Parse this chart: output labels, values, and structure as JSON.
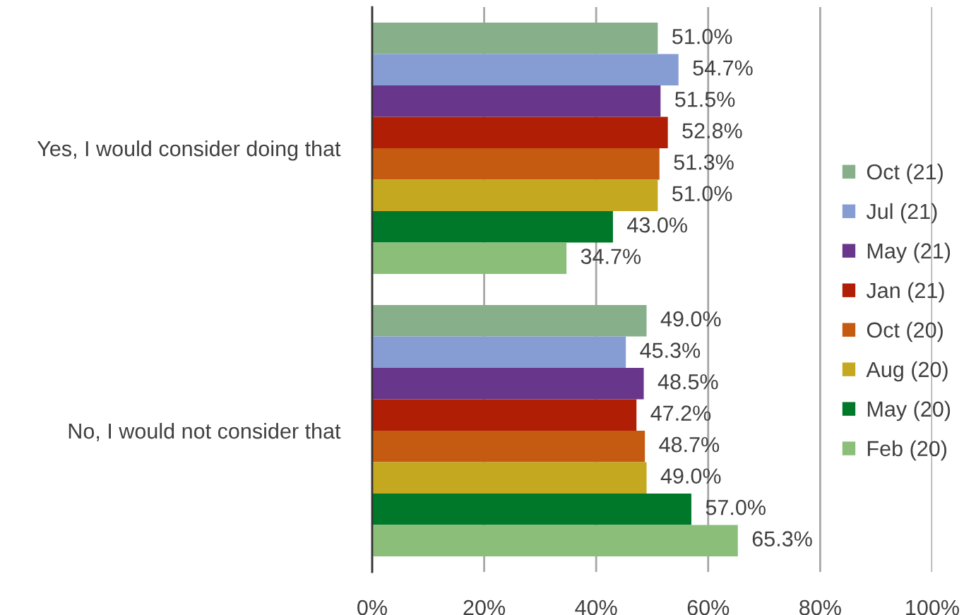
{
  "chart_data": {
    "type": "bar",
    "orientation": "horizontal",
    "categories": [
      "Yes, I would consider doing that",
      "No, I would not consider that"
    ],
    "series": [
      {
        "name": "Oct (21)",
        "color": "#86af8a",
        "values": [
          51.0,
          49.0
        ],
        "value_labels": [
          "51.0%",
          "49.0%"
        ]
      },
      {
        "name": "Jul (21)",
        "color": "#869dd4",
        "values": [
          54.7,
          45.3
        ],
        "value_labels": [
          "54.7%",
          "45.3%"
        ]
      },
      {
        "name": "May (21)",
        "color": "#68368a",
        "values": [
          51.5,
          48.5
        ],
        "value_labels": [
          "51.5%",
          "48.5%"
        ]
      },
      {
        "name": "Jan (21)",
        "color": "#b01e06",
        "values": [
          52.8,
          47.2
        ],
        "value_labels": [
          "52.8%",
          "47.2%"
        ]
      },
      {
        "name": "Oct (20)",
        "color": "#c55a11",
        "values": [
          51.3,
          48.7
        ],
        "value_labels": [
          "51.3%",
          "48.7%"
        ]
      },
      {
        "name": "Aug (20)",
        "color": "#c4a820",
        "values": [
          51.0,
          49.0
        ],
        "value_labels": [
          "51.0%",
          "49.0%"
        ]
      },
      {
        "name": "May (20)",
        "color": "#00782a",
        "values": [
          43.0,
          57.0
        ],
        "value_labels": [
          "43.0%",
          "57.0%"
        ]
      },
      {
        "name": "Feb (20)",
        "color": "#8bbf79",
        "values": [
          34.7,
          65.3
        ],
        "value_labels": [
          "34.7%",
          "65.3%"
        ]
      }
    ],
    "xlim": [
      0,
      100
    ],
    "xticks": [
      {
        "value": 0,
        "label": "0%"
      },
      {
        "value": 20,
        "label": "20%"
      },
      {
        "value": 40,
        "label": "40%"
      },
      {
        "value": 60,
        "label": "60%"
      },
      {
        "value": 80,
        "label": "80%"
      },
      {
        "value": 100,
        "label": "100%"
      }
    ],
    "grid": "x",
    "legend": "right"
  }
}
